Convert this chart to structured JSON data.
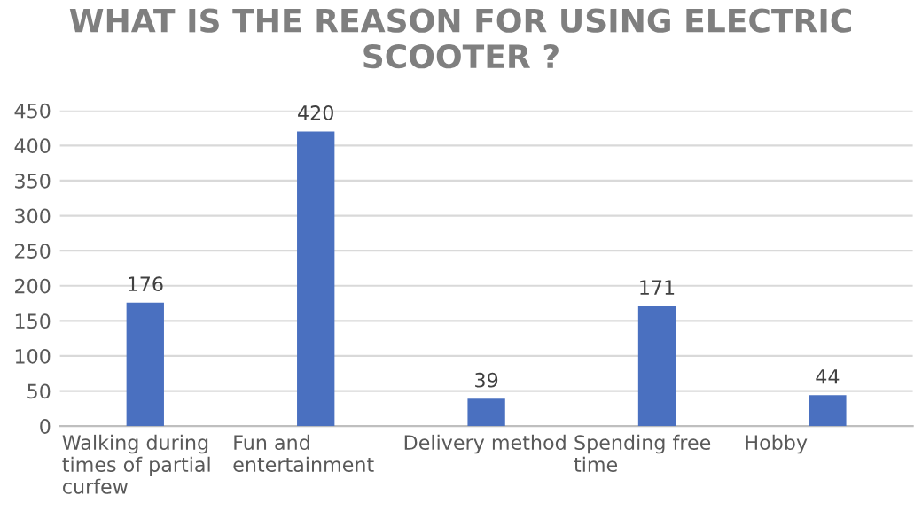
{
  "chart_data": {
    "type": "bar",
    "title": "WHAT IS THE REASON FOR USING ELECTRIC SCOOTER ?",
    "categories": [
      "Walking during times of partial curfew",
      "Fun and entertainment",
      "Delivery method",
      "Spending free time",
      "Hobby"
    ],
    "values": [
      176,
      420,
      39,
      171,
      44
    ],
    "color": "#4a70c0",
    "ylim": [
      0,
      450
    ],
    "yticks": [
      0,
      50,
      100,
      150,
      200,
      250,
      300,
      350,
      400,
      450
    ],
    "grid": "y",
    "data_labels": true,
    "legend": false
  }
}
